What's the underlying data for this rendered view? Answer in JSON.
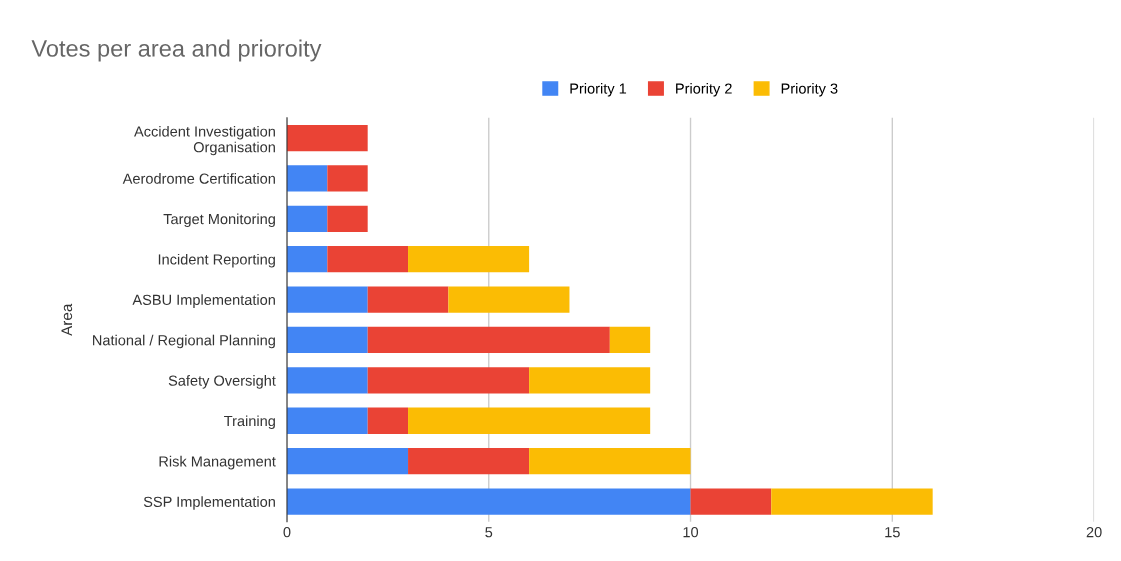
{
  "chart_data": {
    "type": "bar",
    "orientation": "horizontal",
    "stacked": true,
    "title": "Votes per area and prioroity",
    "ylabel": "Area",
    "categories": [
      "Accident Investigation\nOrganisation",
      "Aerodrome Certification",
      "Target Monitoring",
      "Incident Reporting",
      "ASBU Implementation",
      "National / Regional Planning",
      "Safety Oversight",
      "Training",
      "Risk Management",
      "SSP Implementation"
    ],
    "series": [
      {
        "name": "Priority 1",
        "color": "#4285f4",
        "values": [
          0,
          1,
          1,
          1,
          2,
          2,
          2,
          2,
          3,
          10
        ]
      },
      {
        "name": "Priority 2",
        "color": "#ea4335",
        "values": [
          2,
          1,
          1,
          2,
          2,
          6,
          4,
          1,
          3,
          2
        ]
      },
      {
        "name": "Priority 3",
        "color": "#fbbc04",
        "values": [
          0,
          0,
          0,
          3,
          3,
          1,
          3,
          6,
          4,
          4
        ]
      }
    ],
    "xlim": [
      0,
      20
    ],
    "xticks": [
      0,
      5,
      10,
      15,
      20
    ],
    "grid": "x",
    "legend": "top"
  }
}
